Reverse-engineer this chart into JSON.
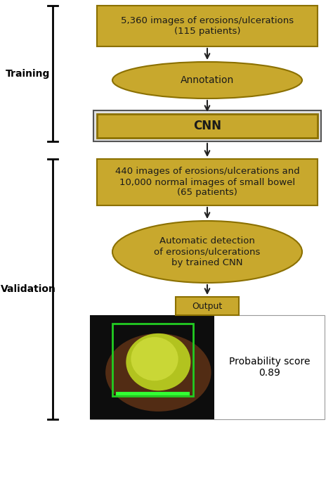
{
  "bg_color": "#ffffff",
  "gold_fill": "#C8A82D",
  "gold_edge": "#8B7000",
  "box1_text": "5,360 images of erosions/ulcerations\n(115 patients)",
  "ellipse1_text": "Annotation",
  "cnn_text": "CNN",
  "box2_text": "440 images of erosions/ulcerations and\n10,000 normal images of small bowel\n(65 patients)",
  "ellipse2_text": "Automatic detection\nof erosions/ulcerations\nby trained CNN",
  "output_text": "Output",
  "prob_text": "Probability score\n0.89",
  "training_label": "Training",
  "validation_label": "Validation",
  "text_color": "#1a1a1a",
  "label_color": "#000000",
  "arrow_color": "#222222",
  "bracket_color": "#000000",
  "outer_cnn_fill": "#e0e0e0",
  "outer_cnn_edge": "#555555"
}
